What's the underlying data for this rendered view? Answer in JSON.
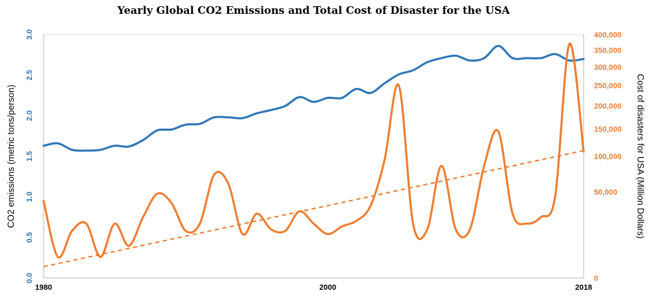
{
  "chart_data": {
    "type": "line",
    "title": "Yearly Global CO2 Emissions and Total Cost of Disaster for the USA",
    "xlabel": "",
    "ylabel": "CO2 emissions (metric tons/person)",
    "y2label": "Cost of disasters for USA (Million Dollars)",
    "xlim": [
      1980,
      2018
    ],
    "ylim": [
      0,
      3.0
    ],
    "y2lim": [
      0,
      400000
    ],
    "y2scale": "sqrt",
    "x_ticks": [
      "1980",
      "2000",
      "2018"
    ],
    "y_ticks": [
      "0.0",
      "0.5",
      "1.0",
      "1.5",
      "2.0",
      "2.5",
      "3.0"
    ],
    "y2_ticks": [
      "0",
      "50,000",
      "100,000",
      "150,000",
      "200,000",
      "250,000",
      "300,000",
      "350,000",
      "400,000"
    ],
    "grid": false,
    "colors": {
      "co2": "#2e75b6",
      "cost": "#ed7d31"
    },
    "series": [
      {
        "axis": "left",
        "color": "#2e75b6",
        "x": [
          1980,
          1981,
          1982,
          1983,
          1984,
          1985,
          1986,
          1987,
          1988,
          1989,
          1990,
          1991,
          1992,
          1993,
          1994,
          1995,
          1996,
          1997,
          1998,
          1999,
          2000,
          2001,
          2002,
          2003,
          2004,
          2005,
          2006,
          2007,
          2008,
          2009,
          2010,
          2011,
          2012,
          2013,
          2014,
          2015,
          2016,
          2017,
          2018
        ],
        "values": [
          1.63,
          1.66,
          1.58,
          1.57,
          1.58,
          1.63,
          1.62,
          1.7,
          1.82,
          1.83,
          1.89,
          1.9,
          1.98,
          1.98,
          1.97,
          2.03,
          2.07,
          2.12,
          2.23,
          2.17,
          2.22,
          2.22,
          2.33,
          2.28,
          2.4,
          2.51,
          2.56,
          2.66,
          2.71,
          2.74,
          2.68,
          2.71,
          2.86,
          2.71,
          2.71,
          2.71,
          2.76,
          2.68,
          2.7
        ]
      },
      {
        "axis": "right",
        "color": "#ed7d31",
        "x": [
          1980,
          1981,
          1982,
          1983,
          1984,
          1985,
          1986,
          1987,
          1988,
          1989,
          1990,
          1991,
          1992,
          1993,
          1994,
          1995,
          1996,
          1997,
          1998,
          1999,
          2000,
          2001,
          2002,
          2003,
          2004,
          2005,
          2006,
          2007,
          2008,
          2009,
          2010,
          2011,
          2012,
          2013,
          2014,
          2015,
          2016,
          2017,
          2018
        ],
        "values": [
          40000,
          3000,
          15000,
          20000,
          3000,
          20000,
          7000,
          25000,
          48000,
          38000,
          15000,
          20000,
          72000,
          60000,
          13000,
          28000,
          16000,
          15000,
          30000,
          20000,
          13000,
          18000,
          22000,
          35000,
          95000,
          250000,
          20000,
          16000,
          85000,
          16000,
          16000,
          85000,
          145000,
          28000,
          20000,
          25000,
          45000,
          370000,
          108000
        ]
      }
    ],
    "trendline": {
      "axis": "left",
      "color": "#ed7d31",
      "style": "dashed",
      "x": [
        1980,
        2018
      ],
      "values": [
        0.14,
        1.57
      ]
    }
  }
}
